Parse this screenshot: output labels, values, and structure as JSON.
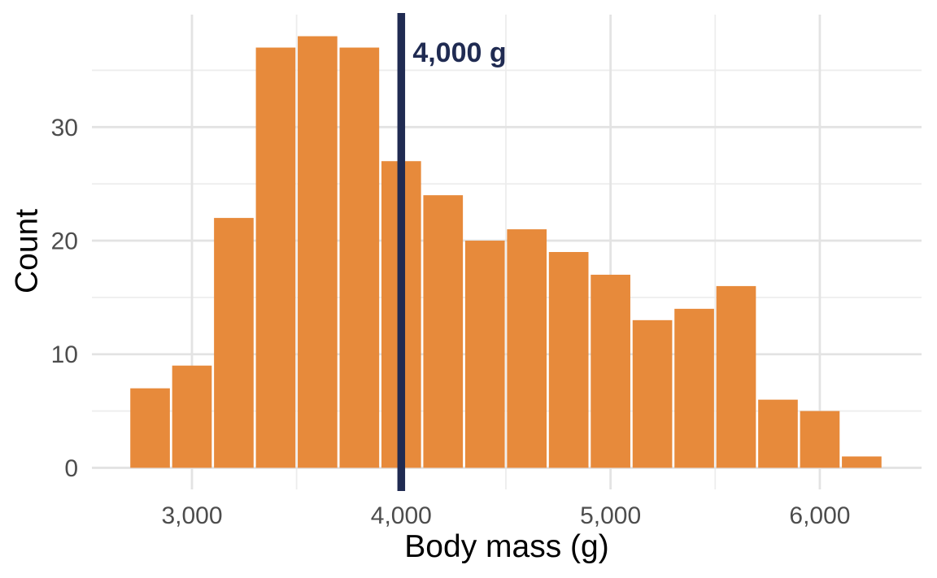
{
  "chart_data": {
    "type": "bar",
    "subtype": "histogram",
    "title": "",
    "xlabel": "Body mass (g)",
    "ylabel": "Count",
    "bin_start": 2700,
    "bin_width": 200,
    "counts": [
      7,
      9,
      22,
      37,
      38,
      37,
      27,
      24,
      20,
      21,
      19,
      17,
      13,
      14,
      16,
      6,
      5,
      1
    ],
    "bin_edges": [
      2700,
      2900,
      3100,
      3300,
      3500,
      3700,
      3900,
      4100,
      4300,
      4500,
      4700,
      4900,
      5100,
      5300,
      5500,
      5700,
      5900,
      6100,
      6300
    ],
    "x_ticks": [
      3000,
      4000,
      5000,
      6000
    ],
    "x_tick_labels": [
      "3,000",
      "4,000",
      "5,000",
      "6,000"
    ],
    "x_minor_ticks": [
      3500,
      4500,
      5500
    ],
    "y_ticks": [
      0,
      10,
      20,
      30
    ],
    "y_tick_labels": [
      "0",
      "10",
      "20",
      "30"
    ],
    "y_minor_ticks": [
      5,
      15,
      25,
      35
    ],
    "x_domain": [
      2522,
      6486
    ],
    "y_domain": [
      -1.9,
      39.9
    ],
    "grid": "major and minor, light gray, no axis lines (minimal theme)",
    "legend": false,
    "annotation": {
      "type": "vline",
      "x": 4000,
      "label": "4,000 g"
    },
    "colors": {
      "bar_fill": "#e78a3b",
      "bar_gap": "#ffffff",
      "vline": "#202b52",
      "annotation_text": "#202b52",
      "grid_major": "#e3e3e3",
      "grid_minor": "#ededed",
      "tick_label": "#4d4d4d",
      "axis_title": "#000000",
      "background": "#ffffff"
    }
  }
}
